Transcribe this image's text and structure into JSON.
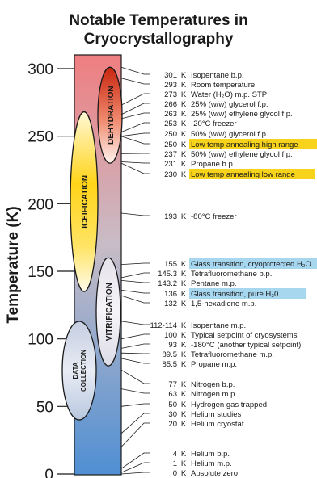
{
  "title": {
    "line1": "Notable Temperatures in",
    "line2": "Cryocrystallography"
  },
  "axis": {
    "label": "Temperature (K)",
    "ticks": [
      {
        "value": 300,
        "label": "300"
      },
      {
        "value": 250,
        "label": "250"
      },
      {
        "value": 200,
        "label": "200"
      },
      {
        "value": 150,
        "label": "150"
      },
      {
        "value": 100,
        "label": "100"
      },
      {
        "value": 50,
        "label": "50"
      },
      {
        "value": 0,
        "label": "0"
      }
    ],
    "range": [
      0,
      310
    ]
  },
  "bar": {
    "gradient": [
      {
        "stop": "0%",
        "color": "#ef7e81"
      },
      {
        "stop": "45%",
        "color": "#c8bcc6"
      },
      {
        "stop": "100%",
        "color": "#4f8fd3"
      }
    ]
  },
  "regions": [
    {
      "id": "dehydration",
      "label": "DEHYDRATION",
      "low": 230,
      "high": 301,
      "fill_top": "#cc2a15",
      "fill_bottom": "#ffffff"
    },
    {
      "id": "iceification",
      "label": "ICEIFICATION",
      "low": 135,
      "high": 268,
      "fill_top": "#ffffff",
      "fill_mid": "#ffd21a"
    },
    {
      "id": "vitrification",
      "label": "VITRIFICATION",
      "low": 80,
      "high": 160,
      "fill_top": "#ffffff",
      "fill_bottom": "#ffffff"
    },
    {
      "id": "data-collection",
      "label_line1": "DATA",
      "label_line2": "COLLECTION",
      "low": 40,
      "high": 113,
      "fill_top": "#ffffff",
      "fill_bottom": "#ffffff"
    }
  ],
  "unit": "K",
  "entries": [
    {
      "value": "301",
      "desc": "Isopentane b.p.",
      "t": 301
    },
    {
      "value": "293",
      "desc": "Room temperature",
      "t": 293
    },
    {
      "value": "273",
      "desc": "Water (H₂O) m.p. STP",
      "t": 273
    },
    {
      "value": "266",
      "desc": "25% (w/w) glycerol f.p.",
      "t": 266
    },
    {
      "value": "263",
      "desc": "25% (w/w) ethylene glycol f.p.",
      "t": 263
    },
    {
      "value": "253",
      "desc": "-20°C freezer",
      "t": 253
    },
    {
      "value": "250",
      "desc": "50% (w/w) glycerol f.p.",
      "t": 250
    },
    {
      "value": "250",
      "desc": "Low temp annealing high range",
      "t": 250,
      "highlight": "#f7d31c"
    },
    {
      "value": "237",
      "desc": "50% (w/w) ethylene glycol f.p.",
      "t": 237
    },
    {
      "value": "231",
      "desc": "Propane b.p.",
      "t": 231
    },
    {
      "value": "230",
      "desc": "Low temp annealing low range",
      "t": 230,
      "highlight": "#f7d31c"
    },
    {
      "value": "193",
      "desc": "-80°C freezer",
      "t": 193
    },
    {
      "value": "155",
      "desc": "Glass transition, cryoprotected H₂O",
      "t": 155,
      "highlight": "#a7d6ef"
    },
    {
      "value": "145.3",
      "desc": "Tetrafluoromethane b.p.",
      "t": 145.3
    },
    {
      "value": "143.2",
      "desc": "Pentane m.p.",
      "t": 143.2
    },
    {
      "value": "136",
      "desc": "Glass transition, pure H₂0",
      "t": 136,
      "highlight": "#a7d6ef"
    },
    {
      "value": "132",
      "desc": "1,5-hexadiene m.p.",
      "t": 132
    },
    {
      "value": "112-114",
      "desc": "Isopentane m.p.",
      "t": 113
    },
    {
      "value": "100",
      "desc": "Typical setpoint of cryosystems",
      "t": 100
    },
    {
      "value": "93",
      "desc": "-180°C (another typical setpoint)",
      "t": 93
    },
    {
      "value": "89.5",
      "desc": "Tetrafluoromethane m.p.",
      "t": 89.5
    },
    {
      "value": "85.5",
      "desc": "Propane m.p.",
      "t": 85.5
    },
    {
      "value": "77",
      "desc": "Nitrogen b.p.",
      "t": 77
    },
    {
      "value": "63",
      "desc": "Nitrogen m.p.",
      "t": 63
    },
    {
      "value": "50",
      "desc": "Hydrogen gas trapped",
      "t": 50
    },
    {
      "value": "30",
      "desc": "Helium studies",
      "t": 30
    },
    {
      "value": "20",
      "desc": "Helium cryostat",
      "t": 20
    },
    {
      "value": "4",
      "desc": "Helium b.p.",
      "t": 4
    },
    {
      "value": "1",
      "desc": "Helium m.p.",
      "t": 1
    },
    {
      "value": "0",
      "desc": "Absolute zero",
      "t": 0
    }
  ]
}
